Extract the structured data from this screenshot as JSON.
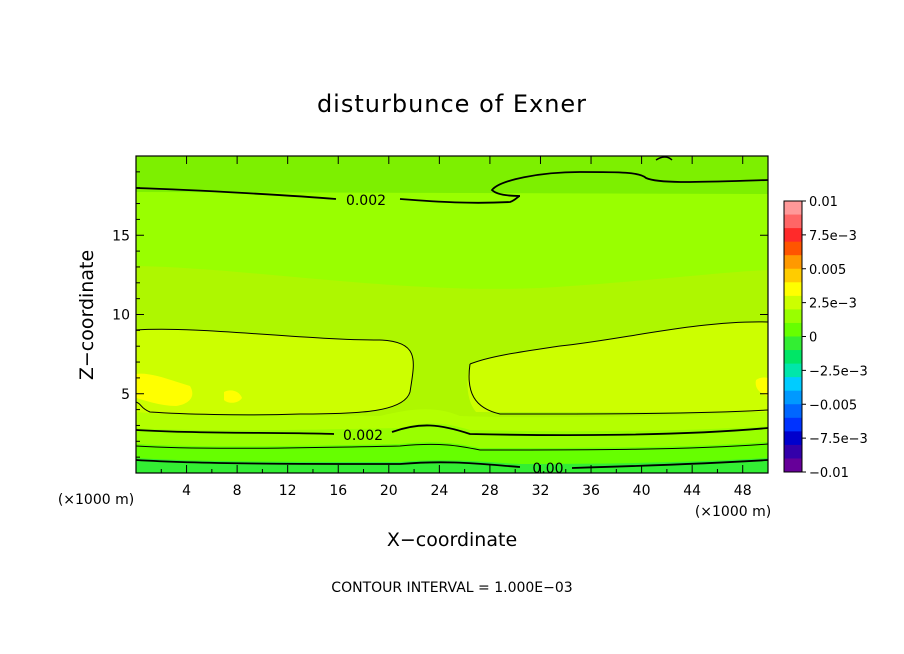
{
  "chart_data": {
    "type": "contour",
    "title": "disturbunce of Exner",
    "xlabel": "X−coordinate",
    "ylabel": "Z−coordinate",
    "x_unit": "(×1000 m)",
    "y_unit": "(×1000 m)",
    "xlim": [
      0,
      50
    ],
    "ylim": [
      0,
      20
    ],
    "x_ticks": [
      4,
      8,
      12,
      16,
      20,
      24,
      28,
      32,
      36,
      40,
      44,
      48
    ],
    "y_ticks": [
      5,
      10,
      15
    ],
    "contour_interval_label": "CONTOUR INTERVAL = 1.000E−03",
    "contour_labels": [
      {
        "text": "0.002",
        "x": 17.5,
        "z": 17.2
      },
      {
        "text": "0.002",
        "x": 17.6,
        "z": 2.3
      },
      {
        "text": "0.00",
        "x": 32.5,
        "z": 0.2
      }
    ],
    "colorbar": {
      "min": -0.01,
      "max": 0.01,
      "labels": [
        "0.01",
        "7.5e−3",
        "0.005",
        "2.5e−3",
        "0",
        "−2.5e−3",
        "−0.005",
        "−7.5e−3",
        "−0.01"
      ],
      "colors_top_to_bottom": [
        "#ff9999",
        "#ff6666",
        "#ff2a2a",
        "#ff5500",
        "#ff9900",
        "#ffcc00",
        "#ffff00",
        "#ccff00",
        "#99ff00",
        "#66ff00",
        "#33ee33",
        "#00e666",
        "#00e6aa",
        "#00ccff",
        "#0099ff",
        "#0066ff",
        "#0033ff",
        "#0000cc",
        "#3300aa",
        "#660099"
      ]
    },
    "field_colors": {
      "top_band": "#7df000",
      "upper_mid": "#99ff00",
      "mid": "#b0ff00",
      "core": "#d4ff00",
      "core_max": "#ffff00",
      "low_1": "#99ff00",
      "low_2": "#66ff00",
      "low_3": "#33ee33"
    }
  }
}
